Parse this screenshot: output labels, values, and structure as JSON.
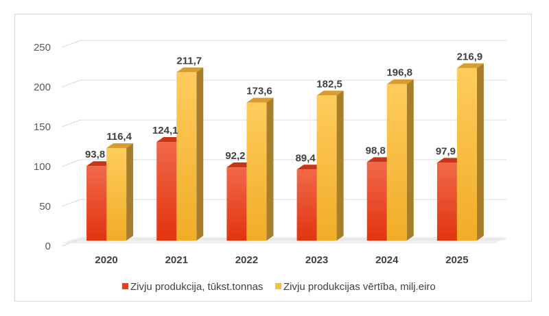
{
  "chart_data": {
    "type": "bar",
    "categories": [
      "2020",
      "2021",
      "2022",
      "2023",
      "2024",
      "2025"
    ],
    "series": [
      {
        "name": "Zivju produkcija, tūkst.tonnas",
        "values": [
          93.8,
          124.1,
          92.2,
          89.4,
          98.8,
          97.9
        ],
        "labels": [
          "93,8",
          "124,1",
          "92,2",
          "89,4",
          "98,8",
          "97,9"
        ],
        "color": "#e8401c"
      },
      {
        "name": "Zivju produkcijas vērtība, milj.eiro",
        "values": [
          116.4,
          211.7,
          173.6,
          182.5,
          196.8,
          216.9
        ],
        "labels": [
          "116,4",
          "211,7",
          "173,6",
          "182,5",
          "196,8",
          "216,9"
        ],
        "color": "#fbbf3c"
      }
    ],
    "y_ticks": [
      "0",
      "50",
      "100",
      "150",
      "200",
      "250"
    ],
    "ylim": [
      0,
      250
    ],
    "grid": true,
    "legend": "bottom",
    "style": "3d-clustered-column"
  }
}
